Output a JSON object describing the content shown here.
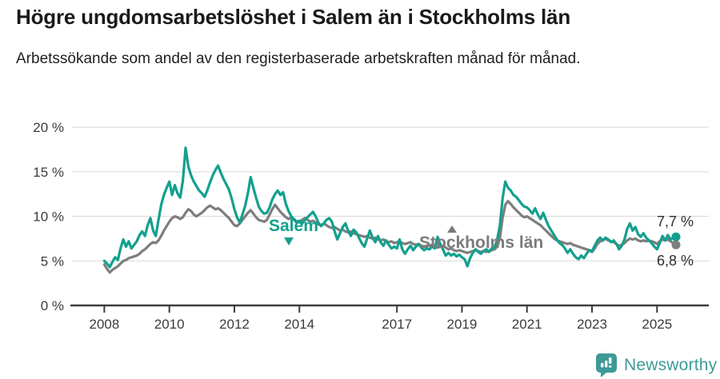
{
  "title": "Högre ungdomsarbetslöshet i Salem än i Stockholms län",
  "subtitle": "Arbetssökande som andel av den registerbaserade arbetskraften månad för månad.",
  "chart_data": {
    "type": "line",
    "x_start": "2008-01",
    "x_step_months": 1,
    "x_tick_years": [
      2008,
      2010,
      2012,
      2014,
      2017,
      2019,
      2021,
      2023,
      2025
    ],
    "y_ticks": [
      {
        "value": 20,
        "label": "20 %"
      },
      {
        "value": 15,
        "label": "15 %"
      },
      {
        "value": 10,
        "label": "10 %"
      },
      {
        "value": 5,
        "label": "5 %"
      },
      {
        "value": 0,
        "label": "0 %"
      }
    ],
    "ylim": [
      0,
      20
    ],
    "grid": "horizontal",
    "legend_position": "inline-labels",
    "series": [
      {
        "name": "Salem",
        "color": "#13a08e",
        "end_label": "7,7 %",
        "end_value": 7.7,
        "values": [
          5.0,
          4.7,
          4.3,
          4.9,
          5.4,
          5.1,
          6.4,
          7.4,
          6.6,
          7.2,
          6.4,
          6.8,
          7.2,
          7.9,
          8.3,
          7.8,
          9.0,
          9.8,
          8.4,
          7.8,
          9.6,
          11.3,
          12.4,
          13.2,
          13.9,
          12.4,
          13.5,
          12.6,
          12.1,
          14.0,
          17.7,
          15.6,
          14.6,
          13.9,
          13.4,
          12.9,
          12.6,
          12.2,
          12.9,
          13.8,
          14.6,
          15.2,
          15.7,
          14.9,
          14.2,
          13.6,
          13.0,
          12.0,
          10.8,
          9.9,
          9.3,
          10.2,
          11.2,
          12.6,
          14.4,
          13.2,
          12.1,
          11.1,
          10.6,
          10.3,
          10.4,
          11.0,
          11.9,
          12.5,
          12.9,
          12.4,
          12.7,
          11.4,
          10.6,
          10.0,
          9.7,
          9.4,
          9.5,
          9.2,
          9.6,
          9.9,
          10.2,
          10.5,
          10.0,
          9.3,
          8.9,
          9.2,
          9.6,
          9.8,
          9.4,
          8.3,
          7.4,
          8.1,
          8.8,
          9.2,
          8.4,
          7.8,
          8.5,
          8.2,
          7.6,
          7.0,
          6.6,
          7.5,
          8.4,
          7.6,
          7.1,
          7.8,
          7.1,
          6.7,
          7.3,
          6.8,
          6.4,
          6.6,
          6.4,
          7.4,
          6.3,
          5.8,
          6.3,
          6.7,
          6.2,
          6.6,
          6.9,
          6.5,
          6.2,
          6.4,
          6.3,
          6.6,
          6.4,
          7.7,
          6.9,
          6.3,
          5.6,
          5.9,
          5.6,
          5.8,
          5.5,
          5.7,
          5.4,
          5.2,
          4.4,
          5.3,
          5.9,
          6.3,
          6.0,
          5.8,
          6.1,
          6.3,
          6.0,
          6.4,
          6.5,
          7.4,
          9.0,
          12.0,
          13.9,
          13.2,
          12.9,
          12.4,
          12.2,
          11.8,
          11.4,
          11.1,
          11.0,
          10.7,
          10.3,
          10.9,
          10.2,
          9.7,
          10.4,
          9.6,
          8.9,
          8.4,
          7.9,
          7.4,
          7.0,
          6.8,
          6.4,
          5.9,
          6.3,
          5.8,
          5.4,
          5.2,
          5.6,
          5.3,
          5.8,
          6.2,
          6.1,
          6.7,
          7.3,
          7.6,
          7.3,
          7.6,
          7.4,
          7.1,
          7.3,
          6.9,
          6.3,
          6.7,
          7.4,
          8.6,
          9.2,
          8.4,
          8.8,
          8.0,
          7.7,
          8.1,
          7.6,
          7.3,
          7.0,
          6.6,
          6.3,
          7.0,
          7.8,
          7.3,
          7.9,
          7.4,
          7.6,
          7.7
        ]
      },
      {
        "name": "Stockholms län",
        "color": "#7e7e7e",
        "end_label": "6,8 %",
        "end_value": 6.8,
        "values": [
          4.6,
          4.1,
          3.7,
          4.0,
          4.2,
          4.4,
          4.7,
          5.0,
          5.1,
          5.3,
          5.4,
          5.5,
          5.6,
          5.8,
          6.1,
          6.3,
          6.6,
          6.9,
          7.1,
          7.0,
          7.3,
          7.8,
          8.4,
          8.9,
          9.4,
          9.8,
          10.0,
          9.9,
          9.7,
          9.9,
          10.4,
          10.8,
          10.6,
          10.2,
          10.0,
          10.2,
          10.4,
          10.7,
          11.0,
          11.2,
          11.0,
          10.8,
          10.9,
          10.7,
          10.4,
          10.1,
          9.8,
          9.4,
          9.0,
          8.9,
          9.2,
          9.6,
          10.0,
          10.4,
          10.7,
          10.3,
          9.9,
          9.6,
          9.5,
          9.4,
          9.6,
          10.2,
          10.8,
          11.3,
          10.9,
          10.5,
          10.2,
          9.9,
          9.7,
          9.9,
          9.6,
          9.3,
          9.4,
          9.6,
          9.8,
          9.6,
          9.4,
          9.5,
          9.3,
          9.1,
          9.0,
          9.2,
          9.0,
          8.8,
          8.7,
          8.8,
          8.6,
          8.4,
          8.5,
          8.3,
          8.2,
          8.3,
          8.1,
          8.0,
          7.9,
          7.8,
          7.7,
          7.8,
          7.6,
          7.5,
          7.6,
          7.4,
          7.3,
          7.4,
          7.2,
          7.1,
          7.2,
          7.0,
          7.1,
          7.2,
          7.0,
          6.9,
          7.0,
          7.1,
          6.9,
          6.8,
          6.9,
          6.7,
          6.6,
          6.7,
          6.7,
          6.8,
          6.6,
          6.5,
          6.6,
          6.7,
          6.5,
          6.3,
          6.4,
          6.2,
          6.1,
          6.2,
          6.1,
          6.0,
          5.9,
          6.0,
          6.1,
          6.2,
          6.1,
          6.0,
          6.1,
          6.0,
          6.1,
          6.2,
          6.3,
          6.6,
          7.6,
          9.8,
          11.3,
          11.7,
          11.4,
          11.0,
          10.7,
          10.4,
          10.1,
          9.9,
          10.0,
          9.8,
          9.6,
          9.4,
          9.2,
          9.0,
          8.7,
          8.4,
          8.1,
          7.8,
          7.5,
          7.3,
          7.2,
          7.1,
          7.0,
          6.9,
          7.0,
          6.8,
          6.7,
          6.6,
          6.5,
          6.4,
          6.3,
          6.2,
          6.0,
          6.4,
          6.9,
          7.2,
          7.3,
          7.5,
          7.3,
          7.2,
          7.1,
          6.9,
          6.7,
          6.8,
          7.0,
          7.3,
          7.5,
          7.4,
          7.5,
          7.3,
          7.2,
          7.3,
          7.2,
          7.3,
          7.2,
          7.1,
          6.9,
          7.2,
          7.4,
          7.3,
          7.4,
          7.2,
          7.0,
          6.8
        ]
      }
    ]
  },
  "colors": {
    "accent_teal": "#13a08e",
    "series_gray": "#7e7e7e",
    "grid": "#dfdfdf",
    "axis": "#3d3d3d",
    "axis_text": "#3c3c3c",
    "end_label_text": "#2e2e2e",
    "logo_teal": "#3d9a96"
  },
  "branding": {
    "logo_text": "Newsworthy"
  }
}
